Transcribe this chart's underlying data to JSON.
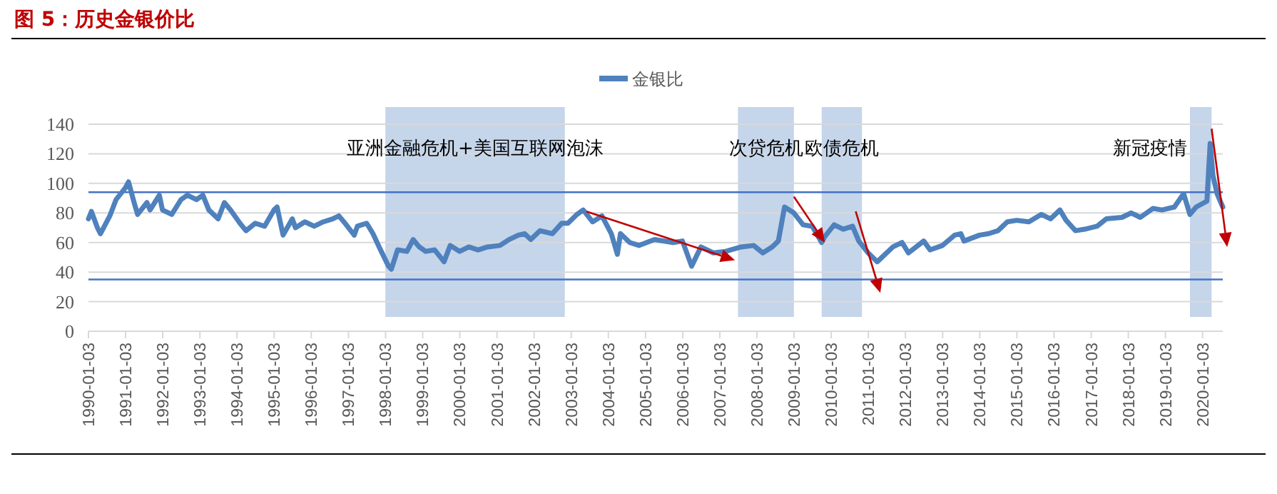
{
  "chart_data": {
    "type": "line",
    "title": "图 5：历史金银价比",
    "legend": "top",
    "grid": "y",
    "marker": "none",
    "line_style": "solid",
    "xlim": [
      "1990-01-03",
      "2020-07-20"
    ],
    "xticks": [
      "1990-01-03",
      "1991-01-03",
      "1992-01-03",
      "1993-01-03",
      "1994-01-03",
      "1995-01-03",
      "1996-01-03",
      "1997-01-03",
      "1998-01-03",
      "1999-01-03",
      "2000-01-03",
      "2001-01-03",
      "2002-01-03",
      "2003-01-03",
      "2004-01-03",
      "2005-01-03",
      "2006-01-03",
      "2007-01-03",
      "2008-01-03",
      "2009-01-03",
      "2010-01-03",
      "2011-01-03",
      "2012-01-03",
      "2013-01-03",
      "2014-01-03",
      "2015-01-03",
      "2016-01-03",
      "2017-01-03",
      "2018-01-03",
      "2019-01-03",
      "2020-01-03"
    ],
    "ylim": [
      0,
      140
    ],
    "yticks": [
      0,
      20,
      40,
      60,
      80,
      100,
      120,
      140
    ],
    "x": [
      "1990-01-03",
      "1990-02",
      "1990-04",
      "1990-05",
      "1990-08",
      "1990-10",
      "1991-01",
      "1991-02",
      "1991-04",
      "1991-05",
      "1991-08",
      "1991-09",
      "1991-12",
      "1992-01",
      "1992-04",
      "1992-07",
      "1992-09",
      "1992-12",
      "1993-02",
      "1993-04",
      "1993-07",
      "1993-09",
      "1993-11",
      "1994-02",
      "1994-04",
      "1994-07",
      "1994-10",
      "1995-01",
      "1995-02",
      "1995-04",
      "1995-07",
      "1995-08",
      "1995-11",
      "1996-02",
      "1996-05",
      "1996-08",
      "1996-10",
      "1996-12",
      "1997-03",
      "1997-04",
      "1997-07",
      "1997-09",
      "1997-11",
      "1998-02",
      "1998-03",
      "1998-05",
      "1998-08",
      "1998-10",
      "1998-12",
      "1999-02",
      "1999-05",
      "1999-08",
      "1999-10",
      "2000-01",
      "2000-04",
      "2000-07",
      "2000-10",
      "2001-02",
      "2001-05",
      "2001-08",
      "2001-10",
      "2001-12",
      "2002-03",
      "2002-07",
      "2002-10",
      "2002-12",
      "2003-03",
      "2003-05",
      "2003-08",
      "2003-11",
      "2004-02",
      "2004-04",
      "2004-05",
      "2004-08",
      "2004-11",
      "2005-04",
      "2005-10",
      "2006-01",
      "2006-04",
      "2006-07",
      "2006-11",
      "2007-03",
      "2007-08",
      "2007-12",
      "2008-03",
      "2008-06",
      "2008-08",
      "2008-10",
      "2009-01",
      "2009-04",
      "2009-07",
      "2009-10",
      "2009-11",
      "2010-02",
      "2010-05",
      "2010-08",
      "2010-10",
      "2011-01",
      "2011-04",
      "2011-09",
      "2011-12",
      "2012-02",
      "2012-07",
      "2012-09",
      "2013-01",
      "2013-05",
      "2013-07",
      "2013-08",
      "2014-01",
      "2014-04",
      "2014-07",
      "2014-10",
      "2015-01",
      "2015-05",
      "2015-09",
      "2015-12",
      "2016-03",
      "2016-05",
      "2016-08",
      "2016-11",
      "2017-03",
      "2017-06",
      "2017-11",
      "2018-02",
      "2018-05",
      "2018-09",
      "2018-12",
      "2019-04",
      "2019-07",
      "2019-09",
      "2019-11",
      "2020-02-15",
      "2020-03-18",
      "2020-04-15",
      "2020-05-25",
      "2020-07-20"
    ],
    "series": [
      {
        "name": "金银比",
        "color": "#4f81bd",
        "values": [
          76,
          81,
          70,
          66,
          78,
          89,
          97,
          101,
          86,
          79,
          87,
          82,
          92,
          82,
          79,
          89,
          92,
          89,
          92,
          82,
          76,
          87,
          82,
          73,
          68,
          73,
          71,
          82,
          84,
          65,
          76,
          70,
          74,
          71,
          74,
          76,
          78,
          73,
          65,
          71,
          73,
          66,
          57,
          44,
          42,
          55,
          54,
          62,
          57,
          54,
          55,
          47,
          58,
          54,
          57,
          55,
          57,
          58,
          62,
          65,
          66,
          62,
          68,
          66,
          73,
          73,
          79,
          82,
          74,
          78,
          66,
          52,
          66,
          60,
          58,
          62,
          60,
          61,
          44,
          57,
          53,
          54,
          57,
          58,
          53,
          57,
          61,
          84,
          80,
          72,
          71,
          60,
          64,
          72,
          69,
          71,
          61,
          53,
          47,
          57,
          60,
          53,
          61,
          55,
          58,
          65,
          66,
          61,
          65,
          66,
          68,
          74,
          75,
          74,
          79,
          76,
          82,
          75,
          68,
          69,
          71,
          76,
          77,
          80,
          77,
          83,
          82,
          84,
          93,
          79,
          84,
          88,
          127,
          105,
          93,
          84
        ]
      }
    ],
    "ref_lines": [
      {
        "axis": "y",
        "value": 94,
        "color": "#4472c4"
      },
      {
        "axis": "y",
        "value": 35,
        "color": "#4472c4"
      }
    ],
    "bands": [
      {
        "axis": "x",
        "from": "1998-01",
        "to": "2002-11",
        "label": "亚洲金融危机+美国互联网泡沫",
        "color": "#c5d5ea"
      },
      {
        "axis": "x",
        "from": "2007-07",
        "to": "2009-01",
        "label": "次贷危机",
        "color": "#c5d5ea"
      },
      {
        "axis": "x",
        "from": "2009-10",
        "to": "2010-11",
        "label": "欧债危机",
        "color": "#c5d5ea"
      },
      {
        "axis": "x",
        "from": "2019-09",
        "to": "2020-04",
        "label": "新冠疫情",
        "color": "#c5d5ea"
      }
    ]
  }
}
